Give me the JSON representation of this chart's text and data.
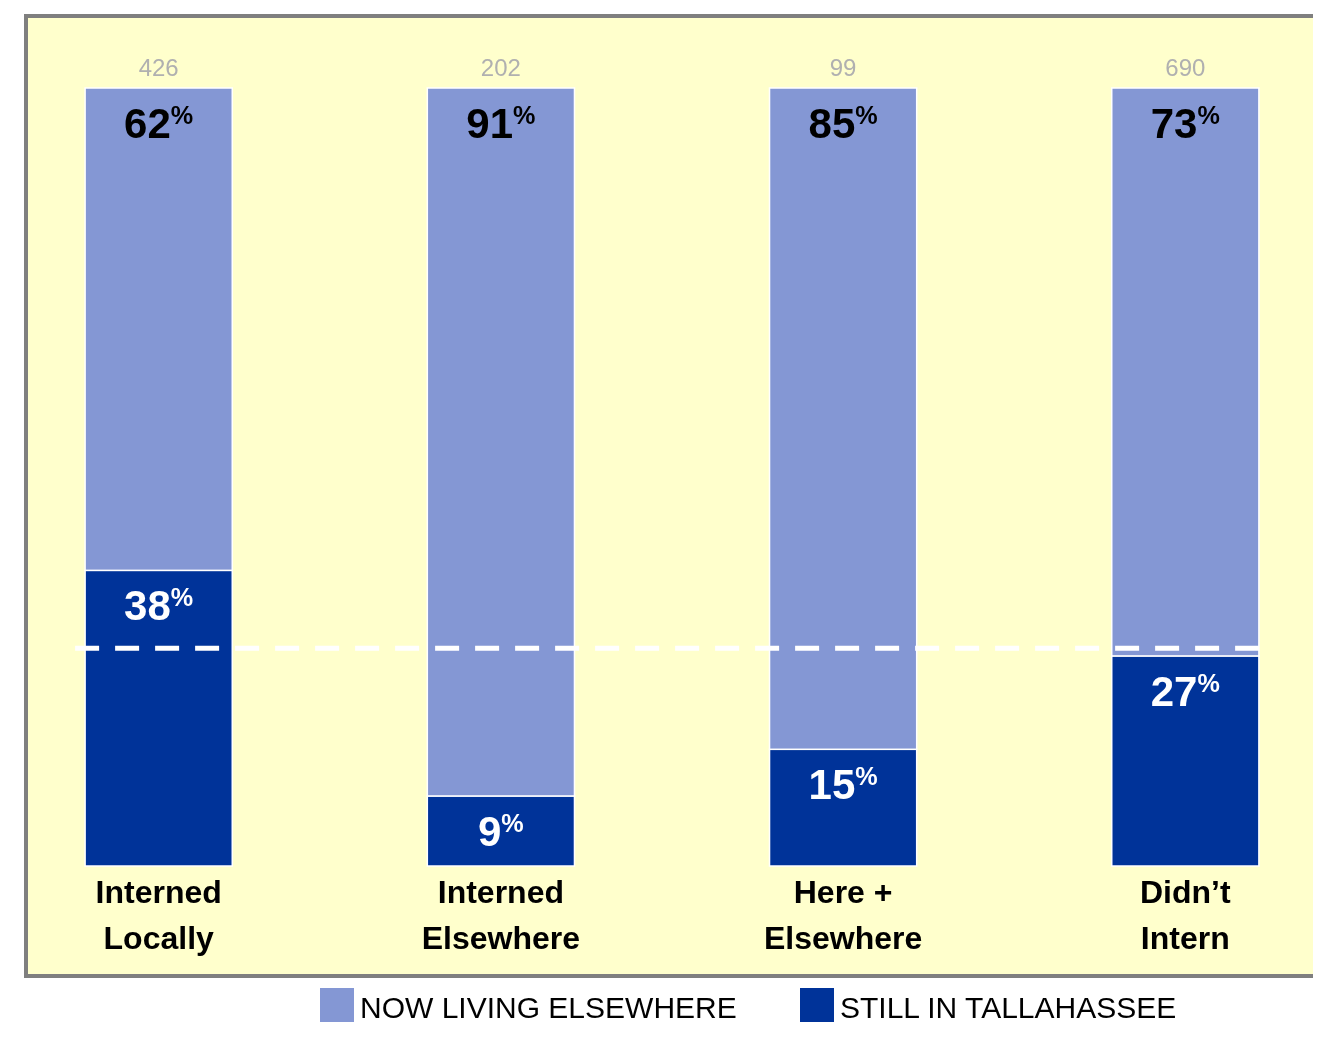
{
  "chart_data": {
    "type": "bar",
    "stacked": true,
    "categories": [
      "Interned Locally",
      "Interned Elsewhere",
      "Here + Elsewhere",
      "Didn’t Intern"
    ],
    "series": [
      {
        "name": "STILL IN TALLAHASSEE",
        "color": "#003399",
        "values": [
          38,
          9,
          15,
          27
        ],
        "value_labels": [
          "38$^{%}$",
          "9$^{%}$",
          "15$^{%}$",
          "27$^{%}$"
        ]
      },
      {
        "name": "NOW LIVING ELSEWHERE",
        "color": "#8497d4",
        "values": [
          62,
          91,
          85,
          73
        ],
        "value_labels": [
          "62$^{%}$",
          "91$^{%}$",
          "85$^{%}$",
          "73$^{%}$"
        ]
      }
    ],
    "ylim": [
      0,
      100
    ],
    "tick_labels": "x",
    "legend": "bottom",
    "ref_lines": [
      {
        "axis": "y",
        "value": 28,
        "color": "#ffffff",
        "line_style": "dashed"
      }
    ],
    "annotations": [
      {
        "text": "426",
        "x": "Interned Locally",
        "y": 100
      },
      {
        "text": "202",
        "x": "Interned Elsewhere",
        "y": 100
      },
      {
        "text": "99",
        "x": "Here + Elsewhere",
        "y": 100
      },
      {
        "text": "690",
        "x": "Didn’t Intern",
        "y": 100
      }
    ]
  }
}
